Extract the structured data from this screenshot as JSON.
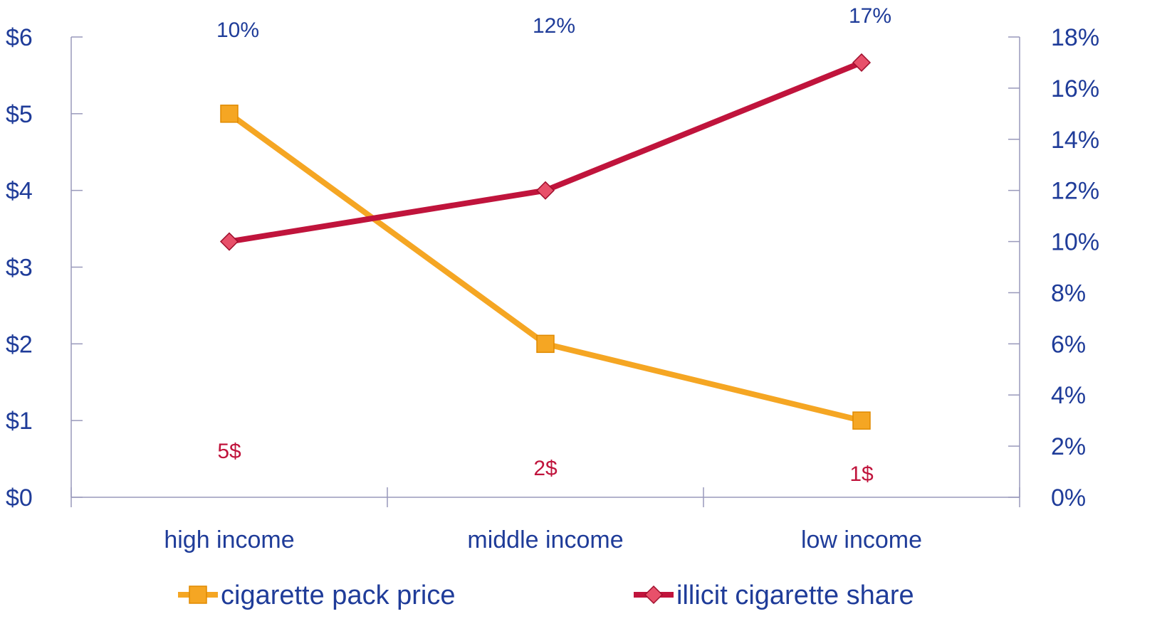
{
  "chart_data": {
    "type": "line",
    "categories": [
      "high income",
      "middle income",
      "low income"
    ],
    "series": [
      {
        "name": "cigarette pack price",
        "axis": "left",
        "values": [
          5,
          2,
          1
        ],
        "color": "#F5A623",
        "marker": "square"
      },
      {
        "name": "illicit cigarette share",
        "axis": "right",
        "values": [
          10,
          12,
          17
        ],
        "color": "#C0143C",
        "marker": "diamond"
      }
    ],
    "left_axis": {
      "min": 0,
      "max": 6,
      "step": 1,
      "tick_labels": [
        "$0",
        "$1",
        "$2",
        "$3",
        "$4",
        "$5",
        "$6"
      ]
    },
    "right_axis": {
      "min": 0,
      "max": 18,
      "step": 2,
      "tick_labels": [
        "0%",
        "2%",
        "4%",
        "6%",
        "8%",
        "10%",
        "12%",
        "14%",
        "16%",
        "18%"
      ]
    },
    "top_labels": [
      "10%",
      "12%",
      "17%"
    ],
    "bottom_labels": [
      "5$",
      "2$",
      "1$"
    ],
    "axis_label_color": "#1F3C99",
    "top_label_color": "#1F3C99",
    "bottom_label_color": "#C0143C",
    "axis_line_color": "#9999BB",
    "legend": {
      "position": "bottom"
    },
    "grid": false
  }
}
